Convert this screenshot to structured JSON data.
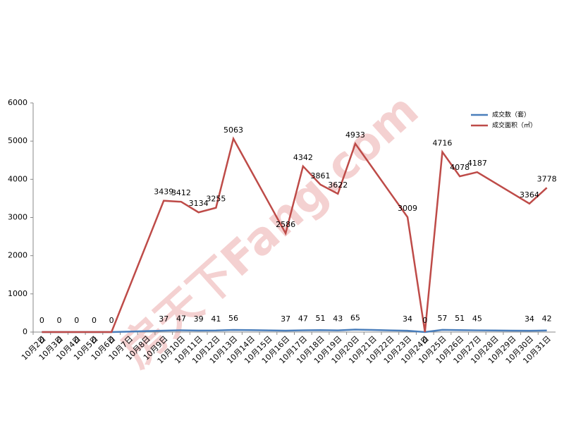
{
  "chart_data": {
    "type": "line",
    "watermark": "房天下Fang.com",
    "categories": [
      "10月2日",
      "10月3日",
      "10月4日",
      "10月5日",
      "10月6日",
      "10月7日",
      "10月8日",
      "10月9日",
      "10月10日",
      "10月11日",
      "10月12日",
      "10月13日",
      "10月14日",
      "10月15日",
      "10月16日",
      "10月17日",
      "10月18日",
      "10月19日",
      "10月20日",
      "10月21日",
      "10月22日",
      "10月23日",
      "10月24日",
      "10月25日",
      "10月26日",
      "10月27日",
      "10月28日",
      "10月29日",
      "10月30日",
      "10月31日"
    ],
    "series": [
      {
        "name": "成交数（套）",
        "color": "#4a7ebb",
        "values": [
          0,
          0,
          0,
          0,
          0,
          12,
          25,
          37,
          47,
          39,
          41,
          56,
          50,
          43,
          37,
          47,
          51,
          43,
          65,
          55,
          44,
          34,
          0,
          57,
          51,
          45,
          41,
          38,
          34,
          42
        ],
        "value_labels": [
          "0",
          "0",
          "0",
          "0",
          "0",
          null,
          null,
          "37",
          "47",
          "39",
          "41",
          "56",
          null,
          null,
          "37",
          "47",
          "51",
          "43",
          "65",
          null,
          null,
          "34",
          "0",
          "57",
          "51",
          "45",
          null,
          null,
          "34",
          "42"
        ]
      },
      {
        "name": "成交面积（㎡）",
        "color": "#be4b48",
        "values": [
          0,
          0,
          0,
          0,
          0,
          1146,
          2293,
          3439,
          3412,
          3134,
          3255,
          5063,
          4237,
          3412,
          2586,
          4342,
          3861,
          3622,
          4933,
          4292,
          3650,
          3009,
          0,
          4716,
          4078,
          4187,
          3913,
          3638,
          3364,
          3778
        ],
        "value_labels": [
          "0",
          "0",
          "0",
          "0",
          "0",
          null,
          null,
          "3439",
          "3412",
          "3134",
          "3255",
          "5063",
          null,
          null,
          "2586",
          "4342",
          "3861",
          "3622",
          "4933",
          null,
          null,
          "3009",
          "0",
          "4716",
          "4078",
          "4187",
          null,
          null,
          "3364",
          "3778"
        ]
      }
    ],
    "ylim": [
      0,
      6000
    ],
    "yticks": [
      0,
      1000,
      2000,
      3000,
      4000,
      5000,
      6000
    ],
    "grid": false,
    "legend": "top-right"
  }
}
